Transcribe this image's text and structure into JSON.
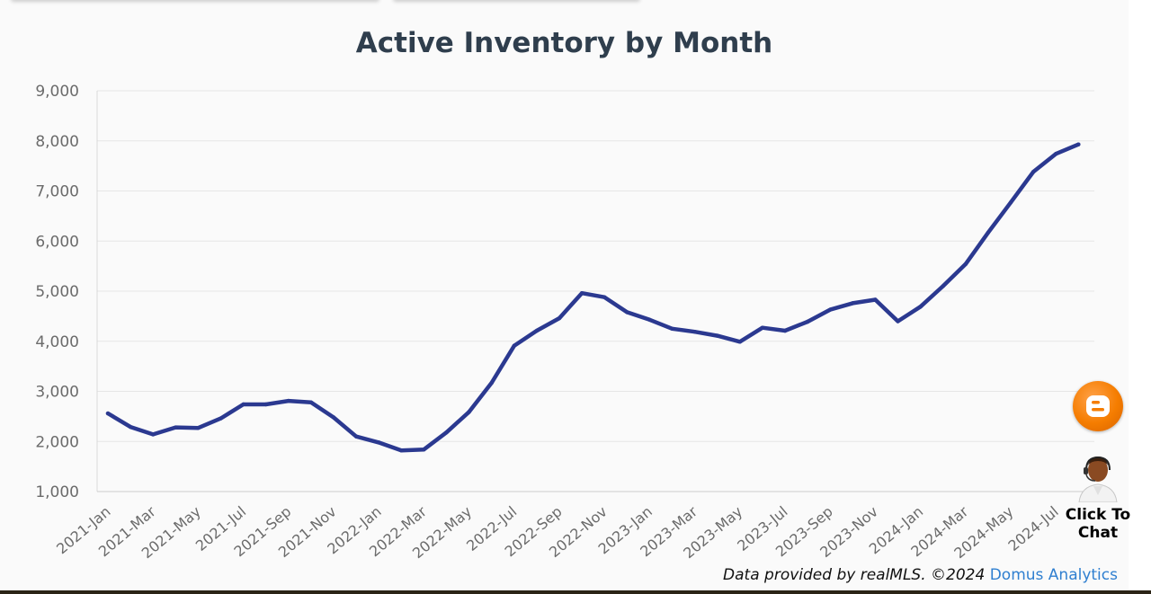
{
  "chart_data": {
    "type": "line",
    "title": "Active Inventory by Month",
    "xlabel": "",
    "ylabel": "",
    "ylim": [
      1000,
      9000
    ],
    "yticks": [
      "1,000",
      "2,000",
      "3,000",
      "4,000",
      "5,000",
      "6,000",
      "7,000",
      "8,000",
      "9,000"
    ],
    "grid": true,
    "legend": "none",
    "x": [
      "2021-Jan",
      "2021-Feb",
      "2021-Mar",
      "2021-Apr",
      "2021-May",
      "2021-Jun",
      "2021-Jul",
      "2021-Aug",
      "2021-Sep",
      "2021-Oct",
      "2021-Nov",
      "2021-Dec",
      "2022-Jan",
      "2022-Feb",
      "2022-Mar",
      "2022-Apr",
      "2022-May",
      "2022-Jun",
      "2022-Jul",
      "2022-Aug",
      "2022-Sep",
      "2022-Oct",
      "2022-Nov",
      "2022-Dec",
      "2023-Jan",
      "2023-Feb",
      "2023-Mar",
      "2023-Apr",
      "2023-May",
      "2023-Jun",
      "2023-Jul",
      "2023-Aug",
      "2023-Sep",
      "2023-Oct",
      "2023-Nov",
      "2023-Dec",
      "2024-Jan",
      "2024-Feb",
      "2024-Mar",
      "2024-Apr",
      "2024-May",
      "2024-Jun",
      "2024-Jul",
      "2024-Aug"
    ],
    "xtick_labels": [
      "2021-Jan",
      "2021-Mar",
      "2021-May",
      "2021-Jul",
      "2021-Sep",
      "2021-Nov",
      "2022-Jan",
      "2022-Mar",
      "2022-May",
      "2022-Jul",
      "2022-Sep",
      "2022-Nov",
      "2023-Jan",
      "2023-Mar",
      "2023-May",
      "2023-Jul",
      "2023-Sep",
      "2023-Nov",
      "2024-Jan",
      "2024-Mar",
      "2024-May",
      "2024-Jul"
    ],
    "series": [
      {
        "color": "#2b3990",
        "values": [
          2560,
          2290,
          2140,
          2280,
          2270,
          2460,
          2740,
          2740,
          2810,
          2780,
          2480,
          2100,
          1980,
          1820,
          1840,
          2180,
          2590,
          3170,
          3910,
          4210,
          4460,
          4960,
          4880,
          4580,
          4430,
          4250,
          4190,
          4110,
          3990,
          4270,
          4210,
          4390,
          4630,
          4760,
          4830,
          4400,
          4690,
          5100,
          5540,
          6170,
          6770,
          7380,
          7740,
          7930
        ]
      }
    ]
  },
  "credit": {
    "text": "Data provided by realMLS.  ©2024",
    "brand": "Domus Analytics"
  },
  "widgets": {
    "blogger_icon": "blogger-icon",
    "chat_icon": "support-agent-icon",
    "chat_label_line1": "Click To",
    "chat_label_line2": "Chat"
  }
}
